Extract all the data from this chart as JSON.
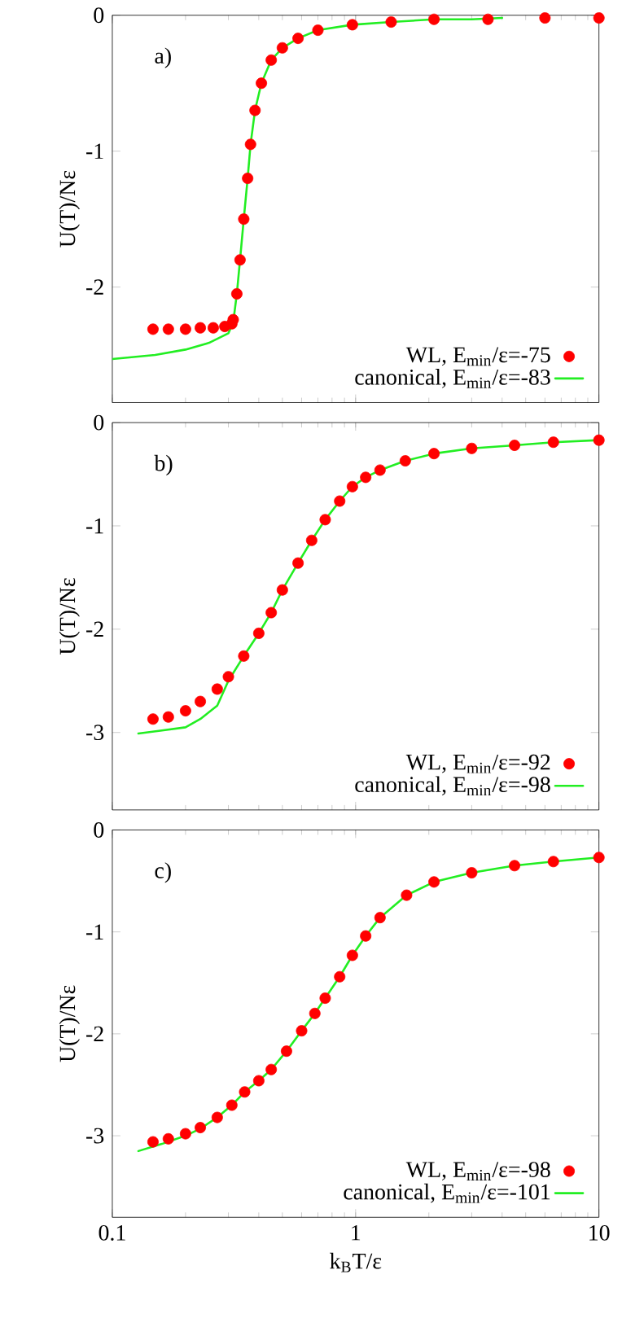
{
  "chart_data": [
    {
      "type": "line",
      "annotations": [
        "a)"
      ],
      "ylabel": "U(T)/Nε",
      "log": "x",
      "xlim": [
        0.1,
        10
      ],
      "ylim": [
        -2.85,
        0
      ],
      "xticks": [
        0.1,
        1,
        10
      ],
      "yticks": [
        -2,
        -1,
        0
      ],
      "tick_labels": "y",
      "legend": "bottom right",
      "series": [
        {
          "type": "scatter",
          "name": "WL, E$_{min}$/ε=-75",
          "color": "#ff0000",
          "x": [
            0.147,
            0.17,
            0.2,
            0.23,
            0.26,
            0.29,
            0.31,
            0.314,
            0.325,
            0.335,
            0.347,
            0.36,
            0.37,
            0.386,
            0.41,
            0.45,
            0.5,
            0.58,
            0.7,
            0.97,
            1.4,
            2.1,
            3.5,
            6,
            10
          ],
          "values": [
            -2.31,
            -2.31,
            -2.31,
            -2.3,
            -2.3,
            -2.29,
            -2.27,
            -2.24,
            -2.05,
            -1.8,
            -1.5,
            -1.2,
            -0.95,
            -0.7,
            -0.5,
            -0.33,
            -0.24,
            -0.17,
            -0.11,
            -0.07,
            -0.05,
            -0.03,
            -0.03,
            -0.02,
            -0.02
          ]
        },
        {
          "name": "canonical, E$_{min}$/ε=-83",
          "color": "#22ee22",
          "x": [
            0.1,
            0.15,
            0.2,
            0.25,
            0.3,
            0.314,
            0.325,
            0.335,
            0.347,
            0.36,
            0.37,
            0.386,
            0.41,
            0.45,
            0.5,
            0.58,
            0.7,
            0.97,
            1.4,
            2.1,
            3,
            4
          ],
          "values": [
            -2.53,
            -2.5,
            -2.46,
            -2.41,
            -2.34,
            -2.26,
            -2.05,
            -1.8,
            -1.5,
            -1.2,
            -0.95,
            -0.7,
            -0.5,
            -0.33,
            -0.24,
            -0.17,
            -0.11,
            -0.07,
            -0.05,
            -0.03,
            -0.03,
            -0.02
          ]
        }
      ]
    },
    {
      "type": "line",
      "annotations": [
        "b)"
      ],
      "ylabel": "U(T)/Nε",
      "log": "x",
      "xlim": [
        0.1,
        10
      ],
      "ylim": [
        -3.75,
        0
      ],
      "xticks": [
        0.1,
        1,
        10
      ],
      "yticks": [
        -3,
        -2,
        -1,
        0
      ],
      "tick_labels": "y",
      "legend": "bottom right",
      "series": [
        {
          "type": "scatter",
          "name": "WL, E$_{min}$/ε=-92",
          "color": "#ff0000",
          "x": [
            0.147,
            0.17,
            0.2,
            0.23,
            0.27,
            0.3,
            0.347,
            0.4,
            0.45,
            0.5,
            0.58,
            0.66,
            0.75,
            0.86,
            0.97,
            1.1,
            1.26,
            1.6,
            2.1,
            3,
            4.5,
            6.5,
            10
          ],
          "values": [
            -2.87,
            -2.85,
            -2.79,
            -2.7,
            -2.58,
            -2.46,
            -2.26,
            -2.04,
            -1.84,
            -1.62,
            -1.36,
            -1.14,
            -0.94,
            -0.76,
            -0.62,
            -0.53,
            -0.46,
            -0.37,
            -0.3,
            -0.25,
            -0.22,
            -0.19,
            -0.17
          ]
        },
        {
          "name": "canonical, E$_{min}$/ε=-98",
          "color": "#22ee22",
          "x": [
            0.128,
            0.16,
            0.2,
            0.23,
            0.27,
            0.3,
            0.347,
            0.4,
            0.45,
            0.5,
            0.58,
            0.66,
            0.75,
            0.86,
            0.97,
            1.1,
            1.26,
            1.6,
            2.1,
            3,
            4.5,
            6.5,
            10
          ],
          "values": [
            -3.01,
            -2.98,
            -2.95,
            -2.87,
            -2.74,
            -2.5,
            -2.26,
            -2.04,
            -1.84,
            -1.62,
            -1.36,
            -1.14,
            -0.94,
            -0.76,
            -0.62,
            -0.53,
            -0.46,
            -0.37,
            -0.3,
            -0.25,
            -0.22,
            -0.19,
            -0.17
          ]
        }
      ]
    },
    {
      "type": "line",
      "annotations": [
        "c)"
      ],
      "ylabel": "U(T)/Nε",
      "xlabel": "k$_{B}$T/ε",
      "log": "x",
      "xlim": [
        0.1,
        10
      ],
      "ylim": [
        -3.8,
        0
      ],
      "xticks": [
        0.1,
        1,
        10
      ],
      "yticks": [
        -3,
        -2,
        -1,
        0
      ],
      "legend": "bottom right",
      "series": [
        {
          "type": "scatter",
          "name": "WL, E$_{min}$/ε=-98",
          "color": "#ff0000",
          "x": [
            0.147,
            0.17,
            0.2,
            0.23,
            0.27,
            0.31,
            0.35,
            0.4,
            0.45,
            0.52,
            0.6,
            0.68,
            0.75,
            0.86,
            0.97,
            1.1,
            1.26,
            1.62,
            2.1,
            3,
            4.5,
            6.5,
            10
          ],
          "values": [
            -3.06,
            -3.03,
            -2.98,
            -2.92,
            -2.82,
            -2.7,
            -2.57,
            -2.46,
            -2.35,
            -2.17,
            -1.97,
            -1.8,
            -1.65,
            -1.44,
            -1.23,
            -1.04,
            -0.86,
            -0.64,
            -0.51,
            -0.42,
            -0.35,
            -0.31,
            -0.27
          ]
        },
        {
          "name": "canonical, E$_{min}$/ε=-101",
          "color": "#22ee22",
          "x": [
            0.128,
            0.16,
            0.2,
            0.23,
            0.27,
            0.31,
            0.35,
            0.4,
            0.45,
            0.52,
            0.6,
            0.68,
            0.75,
            0.86,
            0.97,
            1.1,
            1.26,
            1.62,
            2.1,
            3,
            4.5,
            6.5,
            10
          ],
          "values": [
            -3.15,
            -3.08,
            -3.0,
            -2.93,
            -2.82,
            -2.7,
            -2.57,
            -2.46,
            -2.35,
            -2.17,
            -1.97,
            -1.8,
            -1.65,
            -1.44,
            -1.23,
            -1.04,
            -0.86,
            -0.64,
            -0.51,
            -0.42,
            -0.35,
            -0.31,
            -0.27
          ]
        }
      ]
    }
  ]
}
